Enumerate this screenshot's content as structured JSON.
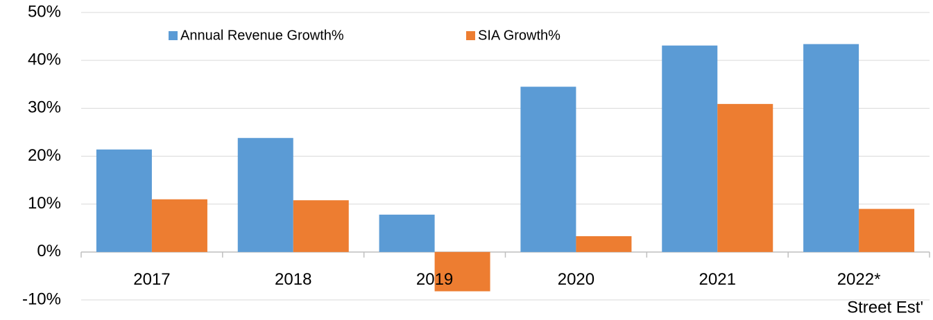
{
  "chart_data": {
    "type": "bar",
    "categories": [
      "2017",
      "2018",
      "2019",
      "2020",
      "2021",
      "2022*"
    ],
    "series": [
      {
        "name": "Annual Revenue Growth%",
        "color": "#5b9bd5",
        "values": [
          21.4,
          23.8,
          7.8,
          34.5,
          43.1,
          43.4
        ]
      },
      {
        "name": "SIA Growth%",
        "color": "#ed7d31",
        "values": [
          11.0,
          10.8,
          -8.2,
          3.3,
          30.9,
          9.0
        ]
      }
    ],
    "annotation": "Street Est'",
    "ylim": [
      -10,
      50
    ],
    "yticks": [
      {
        "value": -10,
        "label": "-10%"
      },
      {
        "value": 0,
        "label": "0%"
      },
      {
        "value": 10,
        "label": "10%"
      },
      {
        "value": 20,
        "label": "20%"
      },
      {
        "value": 30,
        "label": "30%"
      },
      {
        "value": 40,
        "label": "40%"
      },
      {
        "value": 50,
        "label": "50%"
      }
    ],
    "grid": true,
    "legend": "top"
  }
}
